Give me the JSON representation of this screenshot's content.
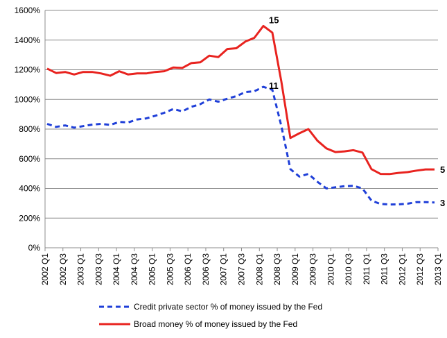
{
  "chart_data": {
    "type": "line",
    "title": "",
    "xlabel": "",
    "ylabel": "",
    "ylim": [
      0,
      1600
    ],
    "y_ticks": [
      "0%",
      "200%",
      "400%",
      "600%",
      "800%",
      "1000%",
      "1200%",
      "1400%",
      "1600%"
    ],
    "y_tick_values": [
      0,
      200,
      400,
      600,
      800,
      1000,
      1200,
      1400,
      1600
    ],
    "x_tick_labels": [
      "2002 Q1",
      "2002 Q3",
      "2003 Q1",
      "2003 Q3",
      "2004 Q1",
      "2004 Q3",
      "2005 Q1",
      "2005 Q3",
      "2006 Q1",
      "2006 Q3",
      "2007 Q1",
      "2007 Q3",
      "2008 Q1",
      "2008 Q3",
      "2009 Q1",
      "2009 Q3",
      "2010 Q1",
      "2010 Q3",
      "2011 Q1",
      "2011 Q3",
      "2012 Q1",
      "2012 Q3",
      "2013 Q1"
    ],
    "grid": true,
    "legend_position": "bottom",
    "series": [
      {
        "name": "Credit private sector % of money issued by the Fed",
        "color": "#1f3fd8",
        "style": "dashed",
        "values": [
          835,
          815,
          825,
          810,
          820,
          830,
          835,
          828,
          848,
          845,
          865,
          872,
          890,
          910,
          935,
          920,
          950,
          968,
          1000,
          985,
          1005,
          1022,
          1050,
          1055,
          1085,
          1065,
          820,
          530,
          480,
          498,
          445,
          400,
          408,
          415,
          418,
          400,
          318,
          295,
          292,
          293,
          297,
          308,
          308,
          305
        ],
        "end_label": "3",
        "peak_label": "11",
        "peak_index": 24
      },
      {
        "name": "Broad money % of money issued by the Fed",
        "color": "#e8231f",
        "style": "solid",
        "values": [
          1208,
          1178,
          1185,
          1168,
          1185,
          1185,
          1175,
          1160,
          1190,
          1168,
          1175,
          1175,
          1185,
          1190,
          1215,
          1212,
          1245,
          1250,
          1295,
          1285,
          1340,
          1345,
          1390,
          1415,
          1495,
          1450,
          1120,
          740,
          772,
          800,
          722,
          670,
          645,
          650,
          658,
          642,
          530,
          498,
          497,
          505,
          510,
          520,
          528,
          528
        ],
        "end_label": "5",
        "peak_label": "15",
        "peak_index": 24
      }
    ]
  }
}
